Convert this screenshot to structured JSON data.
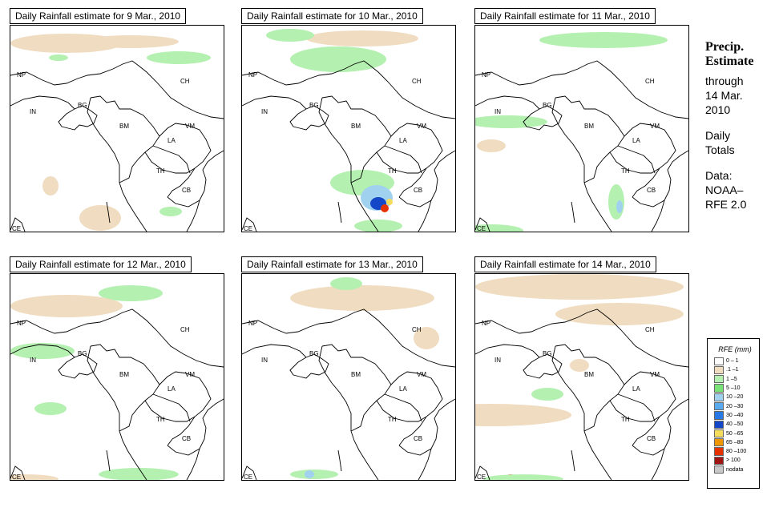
{
  "panels": [
    {
      "title": "Daily Rainfall estimate for  9 Mar., 2010"
    },
    {
      "title": "Daily Rainfall estimate for  10 Mar., 2010"
    },
    {
      "title": "Daily Rainfall estimate for  11 Mar., 2010"
    },
    {
      "title": "Daily Rainfall estimate for  12 Mar., 2010"
    },
    {
      "title": "Daily Rainfall estimate for  13 Mar., 2010"
    },
    {
      "title": "Daily Rainfall estimate for  14 Mar., 2010"
    }
  ],
  "country_labels": {
    "NP": "NP",
    "CH": "CH",
    "IN": "IN",
    "BG": "BG",
    "BM": "BM",
    "VM": "VM",
    "LA": "LA",
    "TH": "TH",
    "CB": "CB",
    "CE": "CE"
  },
  "side": {
    "line1": "Precip.",
    "line2": "Estimate",
    "line3": "through",
    "line4": "14 Mar.",
    "line5": "2010",
    "line6": "Daily",
    "line7": "Totals",
    "line8": "Data:",
    "line9": "NOAA–",
    "line10": "RFE 2.0"
  },
  "legend": {
    "title": "RFE (mm)",
    "items": [
      {
        "label": "0 – 1",
        "color": "#ffffff"
      },
      {
        "label": ".1 –1",
        "color": "#f0dcc0"
      },
      {
        "label": "1 –5",
        "color": "#b4f0b0"
      },
      {
        "label": "5 –10",
        "color": "#78e478"
      },
      {
        "label": "10 –20",
        "color": "#a0d2f0"
      },
      {
        "label": "20 –30",
        "color": "#5aaaf0"
      },
      {
        "label": "30 –40",
        "color": "#2878e6"
      },
      {
        "label": "40 –50",
        "color": "#1446c8"
      },
      {
        "label": "50 –65",
        "color": "#f5dc5a"
      },
      {
        "label": "65 –80",
        "color": "#f09600"
      },
      {
        "label": "80 –100",
        "color": "#e63200"
      },
      {
        "label": "> 100",
        "color": "#a01414"
      },
      {
        "label": "nodata",
        "color": "#c8c8c8"
      }
    ]
  }
}
